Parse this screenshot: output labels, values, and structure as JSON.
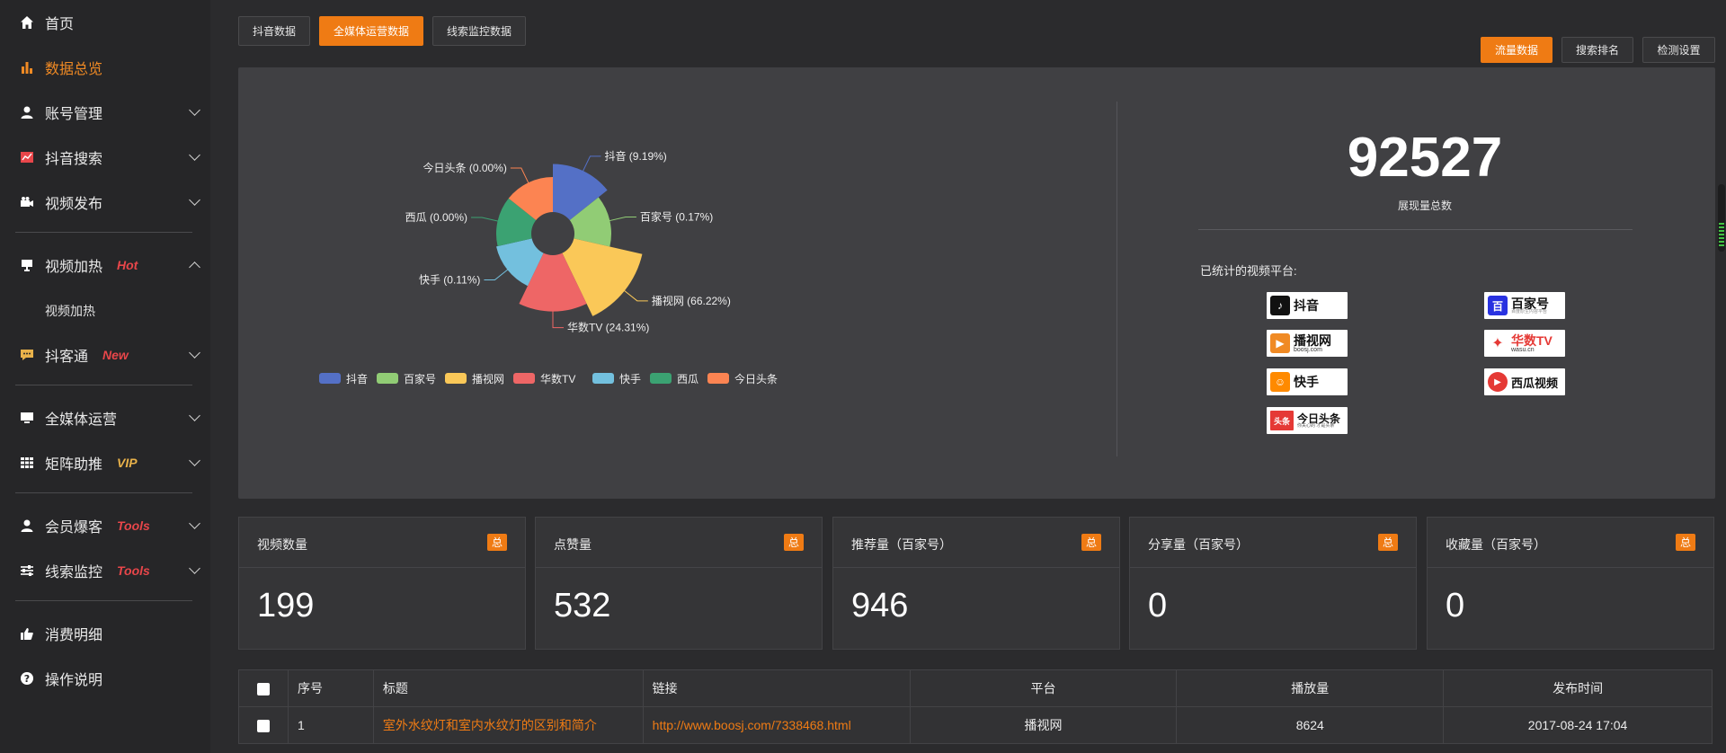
{
  "sidebar": {
    "items": [
      {
        "label": "首页",
        "icon": "home-icon"
      },
      {
        "label": "数据总览",
        "icon": "bar-chart-icon"
      },
      {
        "label": "账号管理",
        "icon": "user-icon"
      },
      {
        "label": "抖音搜索",
        "icon": "trend-icon"
      },
      {
        "label": "视频发布",
        "icon": "camera-icon"
      },
      {
        "label": "视频加热",
        "icon": "monitor-icon",
        "tag": "Hot"
      },
      {
        "label": "视频加热"
      },
      {
        "label": "抖客通",
        "icon": "chat-icon",
        "tag": "New"
      },
      {
        "label": "全媒体运营",
        "icon": "desktop-icon"
      },
      {
        "label": "矩阵助推",
        "icon": "grid-icon",
        "tag": "VIP"
      },
      {
        "label": "会员爆客",
        "icon": "user-icon",
        "tag": "Tools"
      },
      {
        "label": "线索监控",
        "icon": "sliders-icon",
        "tag": "Tools"
      },
      {
        "label": "消费明细",
        "icon": "thumb-icon"
      },
      {
        "label": "操作说明",
        "icon": "help-icon"
      }
    ]
  },
  "tabs": [
    "抖音数据",
    "全媒体运营数据",
    "线索监控数据"
  ],
  "right_buttons": [
    "流量数据",
    "搜索排名",
    "检测设置"
  ],
  "chart_data": {
    "type": "pie",
    "variant": "rose",
    "series": [
      {
        "name": "抖音",
        "label": "抖音 (9.19%)",
        "value": 9.19,
        "color": "#5470c6"
      },
      {
        "name": "百家号",
        "label": "百家号 (0.17%)",
        "value": 0.17,
        "color": "#91cc75"
      },
      {
        "name": "播视网",
        "label": "播视网 (66.22%)",
        "value": 66.22,
        "color": "#fac858"
      },
      {
        "name": "华数TV",
        "label": "华数TV (24.31%)",
        "value": 24.31,
        "color": "#ee6666"
      },
      {
        "name": "快手",
        "label": "快手 (0.11%)",
        "value": 0.11,
        "color": "#73c0de"
      },
      {
        "name": "西瓜",
        "label": "西瓜 (0.00%)",
        "value": 0.0,
        "color": "#3ba272"
      },
      {
        "name": "今日头条",
        "label": "今日头条 (0.00%)",
        "value": 0.0,
        "color": "#fc8452"
      }
    ],
    "legend_position": "bottom"
  },
  "summary": {
    "total": "92527",
    "total_label": "展现量总数",
    "platforms_title": "已统计的视频平台:",
    "platforms": [
      {
        "name": "抖音",
        "color": "#111111",
        "glyph": "♪"
      },
      {
        "name": "百家号",
        "color": "#2932e1",
        "glyph": "百",
        "subtitle": "百度原生内容平台"
      },
      {
        "name": "播视网",
        "color": "#f08a24",
        "glyph": "▶",
        "subtitle": "boosj.com"
      },
      {
        "name": "华数TV",
        "color": "#e53935",
        "glyph": "✦",
        "subtitle": "wasu.cn"
      },
      {
        "name": "快手",
        "color": "#ff8a00",
        "glyph": "☺"
      },
      {
        "name": "西瓜视频",
        "color": "#e53935",
        "glyph": "▶"
      },
      {
        "name": "今日头条",
        "color": "#e53935",
        "glyph": "头条",
        "subtitle": "你关心的 才是头条"
      }
    ]
  },
  "cards": [
    {
      "title": "视频数量",
      "badge": "总",
      "value": "199"
    },
    {
      "title": "点赞量",
      "badge": "总",
      "value": "532"
    },
    {
      "title": "推荐量（百家号）",
      "badge": "总",
      "value": "946"
    },
    {
      "title": "分享量（百家号）",
      "badge": "总",
      "value": "0"
    },
    {
      "title": "收藏量（百家号）",
      "badge": "总",
      "value": "0"
    }
  ],
  "table": {
    "headers": [
      "序号",
      "标题",
      "链接",
      "平台",
      "播放量",
      "发布时间"
    ],
    "rows": [
      {
        "index": "1",
        "title": "室外水纹灯和室内水纹灯的区别和简介",
        "link": "http://www.boosj.com/7338468.html",
        "platform": "播视网",
        "plays": "8624",
        "time": "2017-08-24 17:04"
      }
    ]
  }
}
